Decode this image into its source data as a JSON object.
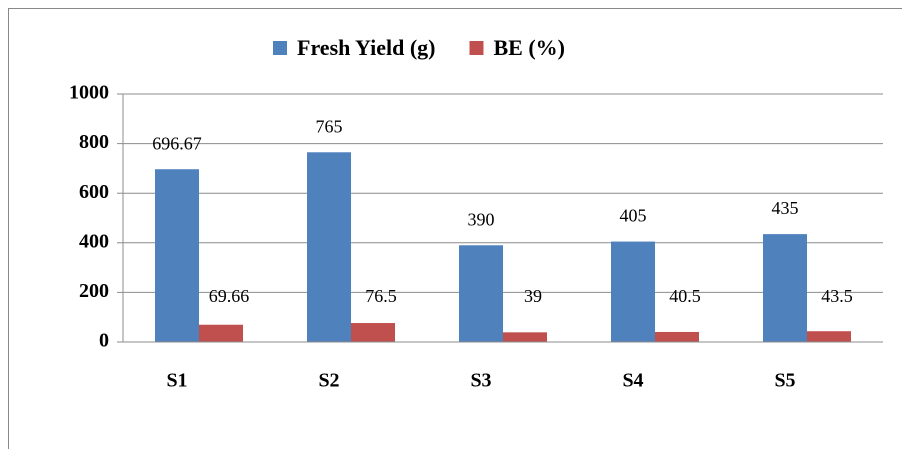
{
  "chart_data": {
    "type": "bar",
    "categories": [
      "S1",
      "S2",
      "S3",
      "S4",
      "S5"
    ],
    "series": [
      {
        "name": "Fresh Yield (g)",
        "color": "#4f81bd",
        "values": [
          696.67,
          765,
          390,
          405,
          435
        ]
      },
      {
        "name": "BE (%)",
        "color": "#c0504d",
        "values": [
          69.66,
          76.5,
          39,
          40.5,
          43.5
        ]
      }
    ],
    "ylim": [
      0,
      1000
    ],
    "yticks": [
      0,
      200,
      400,
      600,
      800,
      1000
    ],
    "grid": true,
    "legend": "top"
  }
}
